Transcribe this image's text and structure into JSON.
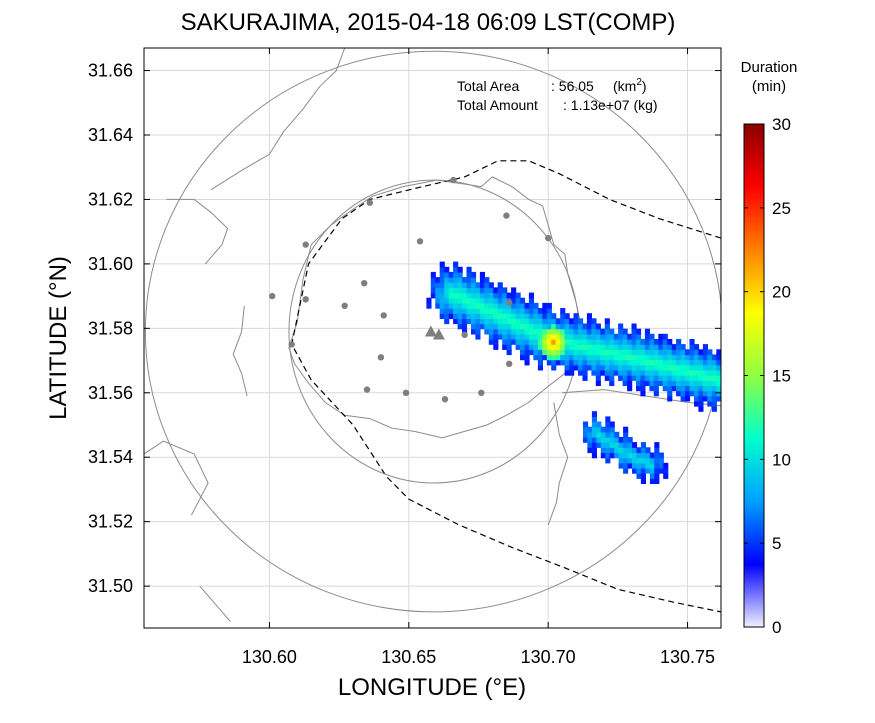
{
  "chart_data": {
    "type": "heatmap",
    "title": "SAKURAJIMA, 2015-04-18 06:09 LST(COMP)",
    "xlabel": "LONGITUDE (°E)",
    "ylabel": "LATITUDE (°N)",
    "xlim": [
      130.555,
      130.762
    ],
    "ylim": [
      31.487,
      31.667
    ],
    "x_ticks": [
      130.6,
      130.65,
      130.7,
      130.75
    ],
    "x_tick_labels": [
      "130.60",
      "130.65",
      "130.70",
      "130.75"
    ],
    "y_ticks": [
      31.5,
      31.52,
      31.54,
      31.56,
      31.58,
      31.6,
      31.62,
      31.64,
      31.66
    ],
    "y_tick_labels": [
      "31.50",
      "31.52",
      "31.54",
      "31.56",
      "31.58",
      "31.60",
      "31.62",
      "31.64",
      "31.66"
    ],
    "grid": true,
    "annotations": {
      "area_label": "Total Area",
      "area_value": ": 56.05",
      "area_unit_open": "(km",
      "area_unit_sup": "2",
      "area_unit_close": ")",
      "amount_label": "Total Amount",
      "amount_value": ": 1.13e+07 (kg)"
    },
    "colorbar": {
      "title_line1": "Duration",
      "title_line2": "(min)",
      "range": [
        0,
        30
      ],
      "ticks": [
        0,
        5,
        10,
        15,
        20,
        25,
        30
      ],
      "tick_labels": [
        "0",
        "5",
        "10",
        "15",
        "20",
        "25",
        "30"
      ],
      "colors": [
        "#f0f0ff",
        "#0000ff",
        "#00a0ff",
        "#00ffcc",
        "#90ff40",
        "#ffff00",
        "#ff8000",
        "#ff0000",
        "#8b0000"
      ]
    },
    "vent": {
      "lon": 130.659,
      "lat": 31.579
    },
    "range_rings": [
      {
        "center": [
          130.659,
          31.579
        ],
        "lat_radius": 0.047,
        "lon_radius": 0.052
      },
      {
        "center": [
          130.659,
          31.579
        ],
        "lat_radius": 0.087,
        "lon_radius": 0.1035
      }
    ],
    "stations": [
      [
        130.666,
        31.626
      ],
      [
        130.636,
        31.619
      ],
      [
        130.685,
        31.615
      ],
      [
        130.7,
        31.608
      ],
      [
        130.654,
        31.607
      ],
      [
        130.613,
        31.606
      ],
      [
        130.601,
        31.59
      ],
      [
        130.613,
        31.589
      ],
      [
        130.634,
        31.594
      ],
      [
        130.627,
        31.587
      ],
      [
        130.641,
        31.584
      ],
      [
        130.686,
        31.588
      ],
      [
        130.67,
        31.578
      ],
      [
        130.608,
        31.575
      ],
      [
        130.64,
        31.571
      ],
      [
        130.686,
        31.569
      ],
      [
        130.635,
        31.561
      ],
      [
        130.649,
        31.56
      ],
      [
        130.663,
        31.558
      ],
      [
        130.676,
        31.56
      ]
    ],
    "coastlines": [
      {
        "closed": true,
        "points": [
          [
            130.607,
            31.574
          ],
          [
            130.61,
            31.582
          ],
          [
            130.612,
            31.595
          ],
          [
            130.615,
            31.606
          ],
          [
            130.622,
            31.612
          ],
          [
            130.63,
            31.617
          ],
          [
            130.637,
            31.621
          ],
          [
            130.648,
            31.624
          ],
          [
            130.66,
            31.626
          ],
          [
            130.668,
            31.625
          ],
          [
            130.676,
            31.624
          ],
          [
            130.68,
            31.627
          ],
          [
            130.687,
            31.624
          ],
          [
            130.693,
            31.62
          ],
          [
            130.698,
            31.618
          ],
          [
            130.7,
            31.612
          ],
          [
            130.702,
            31.606
          ],
          [
            130.706,
            31.603
          ],
          [
            130.707,
            31.597
          ],
          [
            130.71,
            31.588
          ],
          [
            130.712,
            31.58
          ],
          [
            130.71,
            31.572
          ],
          [
            130.706,
            31.566
          ],
          [
            130.7,
            31.562
          ],
          [
            130.693,
            31.557
          ],
          [
            130.685,
            31.553
          ],
          [
            130.678,
            31.55
          ],
          [
            130.67,
            31.548
          ],
          [
            130.662,
            31.546
          ],
          [
            130.652,
            31.548
          ],
          [
            130.644,
            31.549
          ],
          [
            130.636,
            31.552
          ],
          [
            130.627,
            31.553
          ],
          [
            130.62,
            31.557
          ],
          [
            130.614,
            31.563
          ],
          [
            130.609,
            31.569
          ]
        ]
      },
      {
        "closed": false,
        "points": [
          [
            130.702,
            31.557
          ],
          [
            130.704,
            31.547
          ],
          [
            130.707,
            31.54
          ],
          [
            130.704,
            31.532
          ],
          [
            130.703,
            31.526
          ],
          [
            130.7,
            31.519
          ]
        ]
      },
      {
        "closed": false,
        "points": [
          [
            130.705,
            31.56
          ],
          [
            130.72,
            31.561
          ],
          [
            130.735,
            31.559
          ],
          [
            130.75,
            31.557
          ],
          [
            130.762,
            31.556
          ]
        ]
      },
      {
        "closed": false,
        "points": [
          [
            130.579,
            31.623
          ],
          [
            130.59,
            31.629
          ],
          [
            130.6,
            31.634
          ],
          [
            130.605,
            31.641
          ],
          [
            130.612,
            31.648
          ],
          [
            130.618,
            31.655
          ],
          [
            130.624,
            31.66
          ],
          [
            130.627,
            31.667
          ]
        ]
      },
      {
        "closed": false,
        "points": [
          [
            130.577,
            31.6
          ],
          [
            130.583,
            31.606
          ],
          [
            130.585,
            31.611
          ],
          [
            130.579,
            31.616
          ],
          [
            130.573,
            31.62
          ],
          [
            130.563,
            31.62
          ]
        ]
      },
      {
        "closed": false,
        "points": [
          [
            130.591,
            31.587
          ],
          [
            130.59,
            31.579
          ],
          [
            130.587,
            31.572
          ],
          [
            130.59,
            31.566
          ],
          [
            130.592,
            31.559
          ]
        ]
      },
      {
        "closed": false,
        "points": [
          [
            130.555,
            31.541
          ],
          [
            130.562,
            31.545
          ],
          [
            130.573,
            31.541
          ],
          [
            130.578,
            31.532
          ],
          [
            130.572,
            31.522
          ]
        ]
      },
      {
        "closed": false,
        "points": [
          [
            130.575,
            31.5
          ],
          [
            130.58,
            31.495
          ],
          [
            130.586,
            31.489
          ]
        ]
      }
    ],
    "boundary": [
      [
        130.762,
        31.608
      ],
      [
        130.74,
        31.614
      ],
      [
        130.722,
        31.62
      ],
      [
        130.704,
        31.628
      ],
      [
        130.693,
        31.632
      ],
      [
        130.682,
        31.632
      ],
      [
        130.67,
        31.627
      ],
      [
        130.655,
        31.624
      ],
      [
        130.636,
        31.62
      ],
      [
        130.626,
        31.614
      ],
      [
        130.614,
        31.6
      ],
      [
        130.608,
        31.575
      ],
      [
        130.615,
        31.564
      ],
      [
        130.63,
        31.55
      ],
      [
        130.642,
        31.534
      ],
      [
        130.65,
        31.527
      ],
      [
        130.668,
        31.519
      ],
      [
        130.687,
        31.512
      ],
      [
        130.705,
        31.506
      ],
      [
        130.725,
        31.499
      ],
      [
        130.745,
        31.495
      ],
      [
        130.762,
        31.492
      ]
    ],
    "plumes": [
      {
        "name": "main",
        "axis": [
          [
            130.665,
            31.59
          ],
          [
            130.7,
            31.576
          ],
          [
            130.735,
            31.569
          ],
          [
            130.762,
            31.563
          ]
        ],
        "half_width": 0.0085,
        "edge_value": 4,
        "axis_value": 12,
        "peak": {
          "lon": 130.701,
          "lat": 31.575,
          "value": 22
        }
      },
      {
        "name": "south",
        "axis": [
          [
            130.716,
            31.547
          ],
          [
            130.728,
            31.54
          ],
          [
            130.736,
            31.537
          ]
        ],
        "half_width": 0.0048,
        "edge_value": 4,
        "axis_value": 10
      }
    ]
  }
}
